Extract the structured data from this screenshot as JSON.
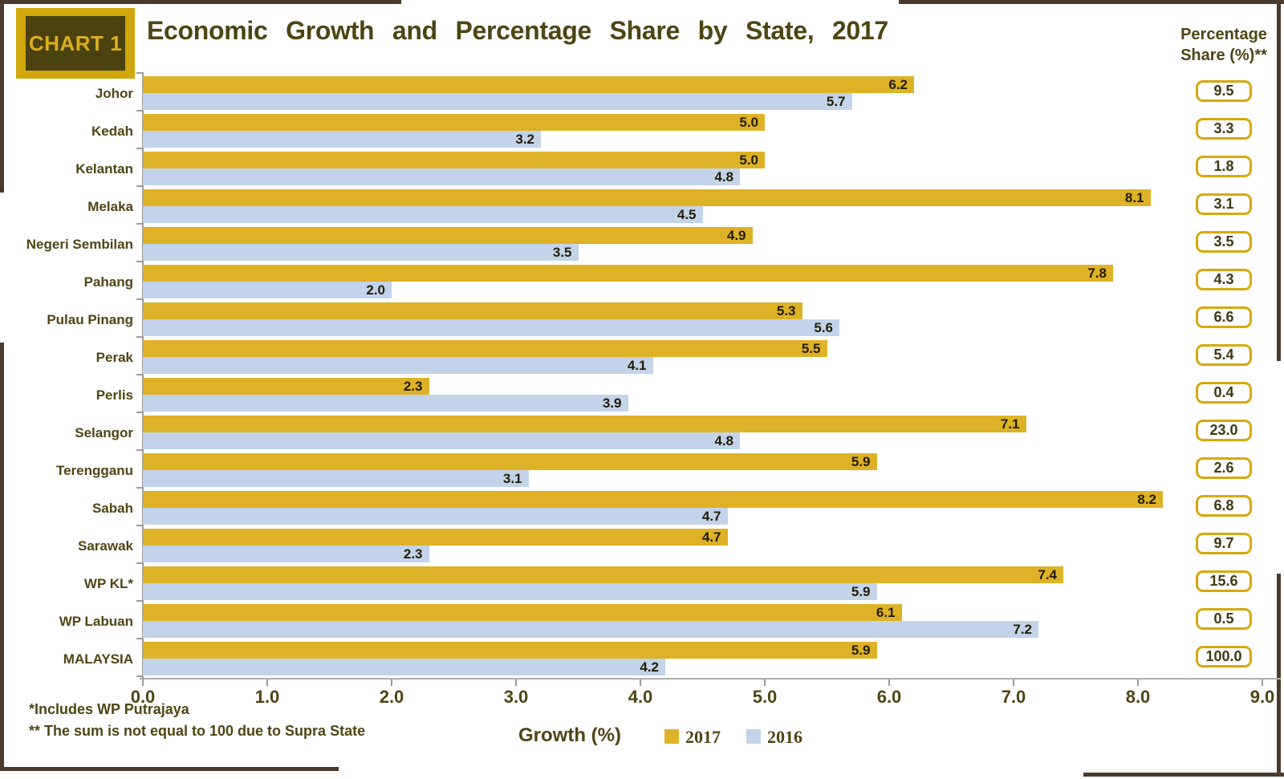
{
  "badge": {
    "label": "CHART 1"
  },
  "title": "Economic Growth and Percentage Share by State, 2017",
  "share_header": {
    "line1": "Percentage",
    "line2": "Share (%)**"
  },
  "footnotes": [
    "*Includes WP Putrajaya",
    "** The sum is not equal to 100 due to Supra State"
  ],
  "colors": {
    "gold": "#DEB226",
    "blue": "#C3D4EA",
    "olive_text": "#4E4513",
    "frame_brown": "#4A3B2C",
    "box_border_gold": "#D9A70B"
  },
  "chart_data": {
    "type": "bar",
    "orientation": "horizontal",
    "title": "Economic Growth and Percentage Share by State, 2017",
    "xlabel": "Growth (%)",
    "xlim": [
      0,
      9
    ],
    "xtick_labels": [
      "0.0",
      "1.0",
      "2.0",
      "3.0",
      "4.0",
      "5.0",
      "6.0",
      "7.0",
      "8.0",
      "9.0"
    ],
    "grid": false,
    "legend_position": "bottom",
    "categories": [
      "Johor",
      "Kedah",
      "Kelantan",
      "Melaka",
      "Negeri Sembilan",
      "Pahang",
      "Pulau Pinang",
      "Perak",
      "Perlis",
      "Selangor",
      "Terengganu",
      "Sabah",
      "Sarawak",
      "WP KL*",
      "WP Labuan",
      "MALAYSIA"
    ],
    "series": [
      {
        "name": "2017",
        "color": "#DEB226",
        "values": [
          6.2,
          5.0,
          5.0,
          8.1,
          4.9,
          7.8,
          5.3,
          5.5,
          2.3,
          7.1,
          5.9,
          8.2,
          4.7,
          7.4,
          6.1,
          5.9
        ]
      },
      {
        "name": "2016",
        "color": "#C3D4EA",
        "values": [
          5.7,
          3.2,
          4.8,
          4.5,
          3.5,
          2.0,
          5.6,
          4.1,
          3.9,
          4.8,
          3.1,
          4.7,
          2.3,
          5.9,
          7.2,
          4.2
        ]
      }
    ],
    "share_column": {
      "header": "Percentage Share (%)**",
      "values": [
        9.5,
        3.3,
        1.8,
        3.1,
        3.5,
        4.3,
        6.6,
        5.4,
        0.4,
        23.0,
        2.6,
        6.8,
        9.7,
        15.6,
        0.5,
        100.0
      ]
    }
  }
}
